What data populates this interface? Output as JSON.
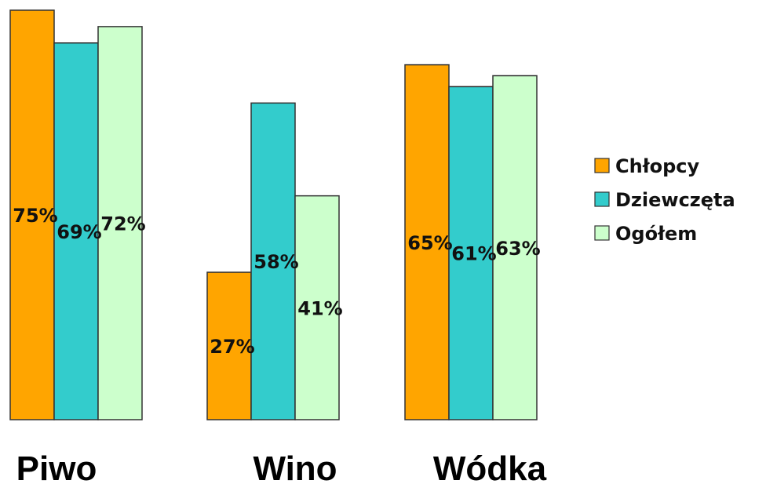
{
  "chart_data": {
    "type": "bar",
    "categories": [
      "Piwo",
      "Wino",
      "Wódka"
    ],
    "series": [
      {
        "name": "Chłopcy",
        "values": [
          75,
          27,
          65
        ],
        "labels": [
          "75%",
          "27%",
          "65%"
        ],
        "color": "#FFA500"
      },
      {
        "name": "Dziewczęta",
        "values": [
          69,
          58,
          61
        ],
        "labels": [
          "69%",
          "58%",
          "61%"
        ],
        "color": "#33CCCC"
      },
      {
        "name": "Ogółem",
        "values": [
          72,
          41,
          63
        ],
        "labels": [
          "72%",
          "41%",
          "63%"
        ],
        "color": "#CCFFCC"
      }
    ],
    "title": "",
    "xlabel": "",
    "ylabel": "",
    "ylim": [
      0,
      75
    ],
    "grid": false,
    "legend": "right"
  }
}
